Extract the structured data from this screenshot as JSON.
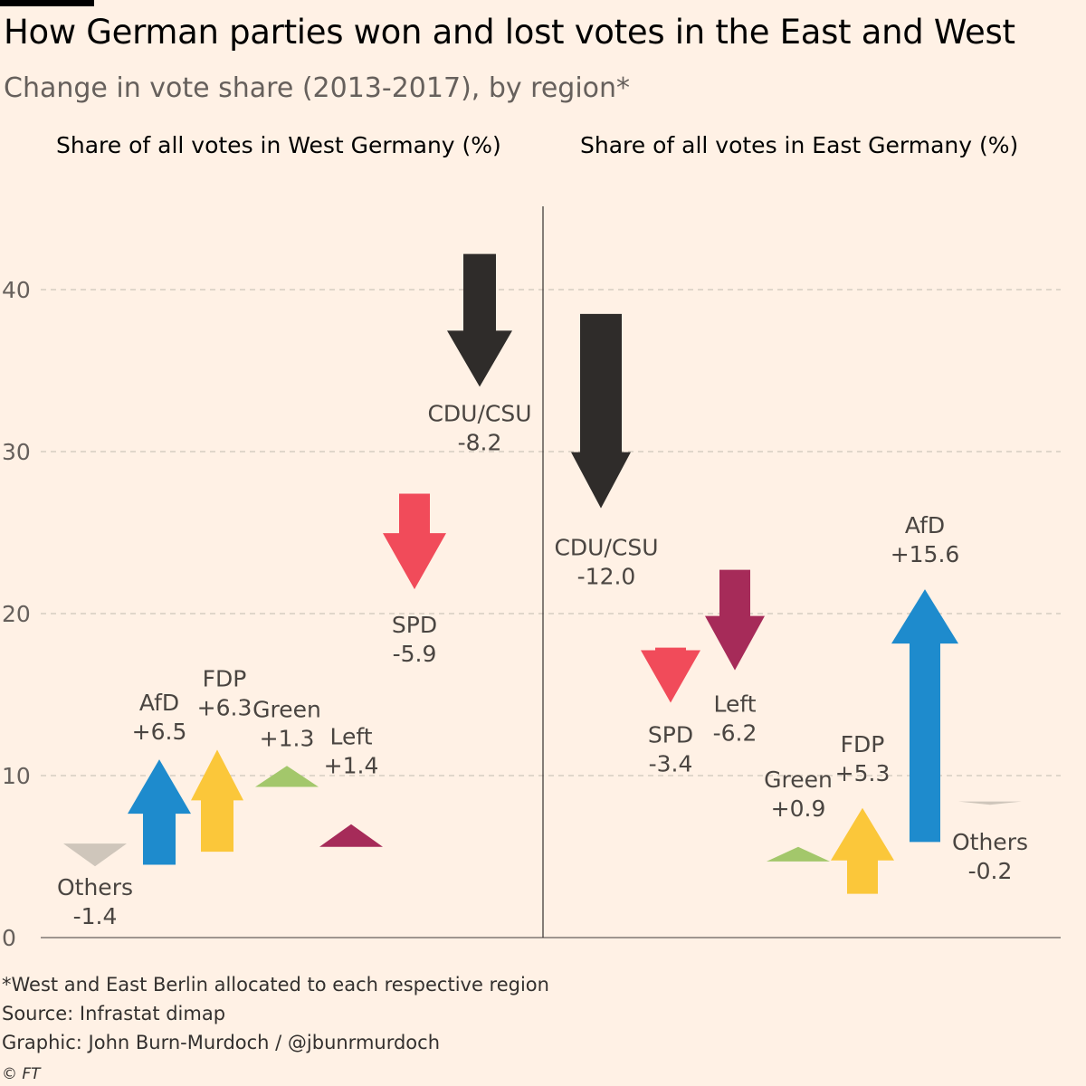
{
  "header": {
    "title": "How German parties won and lost votes in the East and West",
    "subtitle": "Change in vote share (2013-2017), by region*"
  },
  "footer": {
    "note": "*West and East Berlin allocated to each respective region",
    "source": "Source: Infrastat dimap",
    "credit": "Graphic: John Burn-Murdoch / @jbunrmurdoch",
    "copyright": "© FT"
  },
  "colors": {
    "background": "#FFF1E5",
    "CDU/CSU": "#2F2C2A",
    "SPD": "#F14B5A",
    "AfD": "#1E8BCD",
    "FDP": "#FBC73A",
    "Green": "#A3C76B",
    "Left": "#A62B59",
    "Others": "#CFC6BB"
  },
  "chart_data": {
    "type": "arrow",
    "title": "How German parties won and lost votes in the East and West",
    "subtitle": "Change in vote share (2013-2017), by region*",
    "ylabel": "Share of all votes (%)",
    "ylim": [
      0,
      45
    ],
    "yticks": [
      0,
      10,
      20,
      30,
      40
    ],
    "grid": true,
    "panels": [
      {
        "id": "west",
        "title": "Share of all votes in West Germany (%)",
        "series": [
          {
            "party": "Others",
            "from": 5.8,
            "to": 4.4,
            "change_label": "-1.4"
          },
          {
            "party": "AfD",
            "from": 4.5,
            "to": 11.0,
            "change_label": "+6.5"
          },
          {
            "party": "FDP",
            "from": 5.3,
            "to": 11.6,
            "change_label": "+6.3"
          },
          {
            "party": "Green",
            "from": 9.3,
            "to": 10.6,
            "change_label": "+1.3"
          },
          {
            "party": "Left",
            "from": 5.6,
            "to": 7.0,
            "change_label": "+1.4"
          },
          {
            "party": "SPD",
            "from": 27.4,
            "to": 21.5,
            "change_label": "-5.9"
          },
          {
            "party": "CDU/CSU",
            "from": 42.2,
            "to": 34.0,
            "change_label": "-8.2"
          }
        ]
      },
      {
        "id": "east",
        "title": "Share of all votes in East Germany (%)",
        "series": [
          {
            "party": "CDU/CSU",
            "from": 38.5,
            "to": 26.5,
            "change_label": "-12.0"
          },
          {
            "party": "SPD",
            "from": 17.9,
            "to": 14.5,
            "change_label": "-3.4"
          },
          {
            "party": "Left",
            "from": 22.7,
            "to": 16.5,
            "change_label": "-6.2"
          },
          {
            "party": "Green",
            "from": 4.7,
            "to": 5.6,
            "change_label": "+0.9"
          },
          {
            "party": "FDP",
            "from": 2.7,
            "to": 8.0,
            "change_label": "+5.3"
          },
          {
            "party": "AfD",
            "from": 5.9,
            "to": 21.5,
            "change_label": "+15.6"
          },
          {
            "party": "Others",
            "from": 8.4,
            "to": 8.2,
            "change_label": "-0.2"
          }
        ]
      }
    ]
  }
}
